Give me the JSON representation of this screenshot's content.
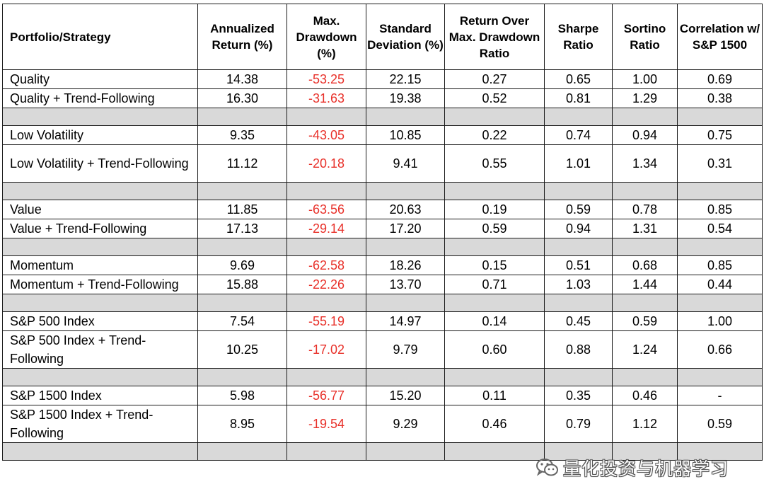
{
  "table": {
    "headers": [
      "Portfolio/Strategy",
      "Annualized Return (%)",
      "Max. Drawdown (%)",
      "Standard Deviation (%)",
      "Return Over Max. Drawdown Ratio",
      "Sharpe Ratio",
      "Sortino Ratio",
      "Correlation w/ S&P 1500"
    ],
    "rows": [
      {
        "type": "data",
        "cells": [
          "Quality",
          "14.38",
          "-53.25",
          "22.15",
          "0.27",
          "0.65",
          "1.00",
          "0.69"
        ]
      },
      {
        "type": "data",
        "cells": [
          "Quality + Trend-Following",
          "16.30",
          "-31.63",
          "19.38",
          "0.52",
          "0.81",
          "1.29",
          "0.38"
        ]
      },
      {
        "type": "separator"
      },
      {
        "type": "data",
        "cells": [
          "Low Volatility",
          "9.35",
          "-43.05",
          "10.85",
          "0.22",
          "0.74",
          "0.94",
          "0.75"
        ]
      },
      {
        "type": "data",
        "cells": [
          "Low Volatility + Trend-Following",
          "11.12",
          "-20.18",
          "9.41",
          "0.55",
          "1.01",
          "1.34",
          "0.31"
        ]
      },
      {
        "type": "separator"
      },
      {
        "type": "data",
        "cells": [
          "Value",
          "11.85",
          "-63.56",
          "20.63",
          "0.19",
          "0.59",
          "0.78",
          "0.85"
        ]
      },
      {
        "type": "data",
        "cells": [
          "Value + Trend-Following",
          "17.13",
          "-29.14",
          "17.20",
          "0.59",
          "0.94",
          "1.31",
          "0.54"
        ]
      },
      {
        "type": "separator"
      },
      {
        "type": "data",
        "cells": [
          "Momentum",
          "9.69",
          "-62.58",
          "18.26",
          "0.15",
          "0.51",
          "0.68",
          "0.85"
        ]
      },
      {
        "type": "data",
        "cells": [
          "Momentum + Trend-Following",
          "15.88",
          "-22.26",
          "13.70",
          "0.71",
          "1.03",
          "1.44",
          "0.44"
        ]
      },
      {
        "type": "separator"
      },
      {
        "type": "data",
        "cells": [
          "S&P 500 Index",
          "7.54",
          "-55.19",
          "14.97",
          "0.14",
          "0.45",
          "0.59",
          "1.00"
        ]
      },
      {
        "type": "data",
        "cells": [
          "S&P 500 Index + Trend-Following",
          "10.25",
          "-17.02",
          "9.79",
          "0.60",
          "0.88",
          "1.24",
          "0.66"
        ]
      },
      {
        "type": "separator"
      },
      {
        "type": "data",
        "cells": [
          "S&P 1500 Index",
          "5.98",
          "-56.77",
          "15.20",
          "0.11",
          "0.35",
          "0.46",
          "-"
        ]
      },
      {
        "type": "data",
        "cells": [
          "S&P 1500 Index + Trend-Following",
          "8.95",
          "-19.54",
          "9.29",
          "0.46",
          "0.79",
          "1.12",
          "0.59"
        ]
      },
      {
        "type": "separator"
      }
    ],
    "negative_color": "#e8312a",
    "separator_color": "#d9d9d9"
  },
  "watermark": {
    "text": "量化投资与机器学习",
    "icon": "wechat-icon"
  }
}
